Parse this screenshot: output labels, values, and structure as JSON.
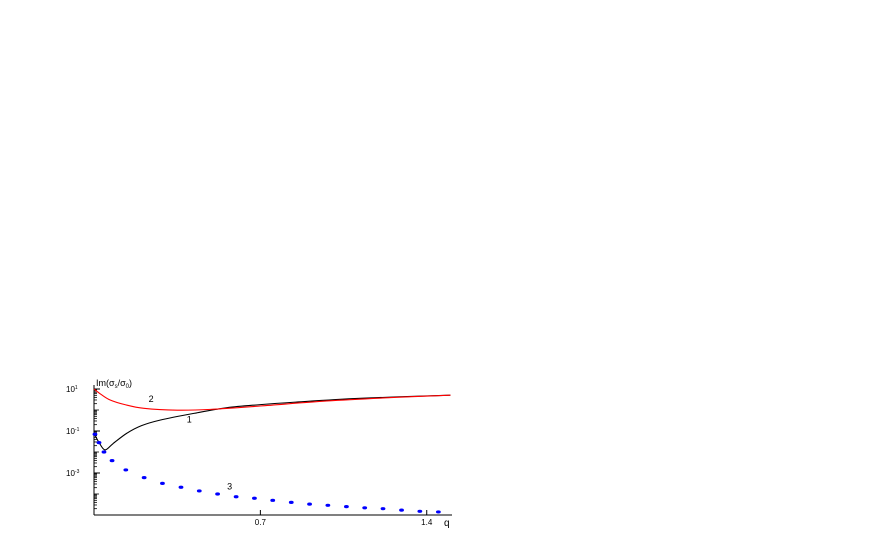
{
  "chart_data": {
    "type": "line",
    "title": "",
    "xlabel": "q",
    "ylabel": "Im(σs/σ0)",
    "ylabel_parts": {
      "base": "Im(σ",
      "sub1": "s",
      "mid": "/σ",
      "sub2": "0",
      "end": ")"
    },
    "xlim": [
      0,
      1.5
    ],
    "ylim": [
      1e-05,
      10
    ],
    "yscale": "log",
    "grid": false,
    "xticks": [
      {
        "value": 0.7,
        "label": "0.7"
      },
      {
        "value": 1.4,
        "label": "1.4"
      }
    ],
    "yticks": [
      {
        "value": 10,
        "base": "10",
        "exp": "1"
      },
      {
        "value": 0.1,
        "base": "10",
        "exp": "-1"
      },
      {
        "value": 0.001,
        "base": "10",
        "exp": "-3"
      }
    ],
    "series": [
      {
        "name": "1",
        "color": "#000000",
        "style": "solid",
        "x": [
          0,
          0.02,
          0.046,
          0.08,
          0.138,
          0.2,
          0.278,
          0.42,
          0.56,
          0.7,
          0.84,
          1.12,
          1.5
        ],
        "y": [
          0.078,
          0.03,
          0.0126,
          0.025,
          0.078,
          0.18,
          0.33,
          0.69,
          1.29,
          1.8,
          2.34,
          3.6,
          5.1
        ],
        "label_at": {
          "x": 0.39,
          "y": 0.25
        }
      },
      {
        "name": "2",
        "color": "#ff0000",
        "style": "solid",
        "x": [
          0,
          0.03,
          0.068,
          0.13,
          0.21,
          0.35,
          0.49,
          0.7,
          0.98,
          1.25,
          1.5
        ],
        "y": [
          10,
          5.5,
          3.0,
          1.8,
          1.2,
          0.98,
          1.07,
          1.55,
          2.7,
          3.9,
          5.1
        ],
        "label_at": {
          "x": 0.23,
          "y": 2.4
        }
      },
      {
        "name": "3",
        "color": "#0000ff",
        "style": "dotted",
        "x": [
          0.004,
          0.021,
          0.042,
          0.076,
          0.134,
          0.211,
          0.288,
          0.366,
          0.443,
          0.52,
          0.598,
          0.675,
          0.752,
          0.83,
          0.907,
          0.984,
          1.062,
          1.139,
          1.216,
          1.294,
          1.371,
          1.449
        ],
        "y": [
          0.07,
          0.028,
          0.01,
          0.0039,
          0.0014,
          0.0006,
          0.00032,
          0.00021,
          0.00014,
          0.0001,
          7.4e-05,
          6.3e-05,
          5e-05,
          4e-05,
          3.3e-05,
          2.9e-05,
          2.5e-05,
          2.2e-05,
          2e-05,
          1.7e-05,
          1.5e-05,
          1.4e-05
        ],
        "label_at": {
          "x": 0.56,
          "y": 0.00016
        }
      }
    ]
  }
}
